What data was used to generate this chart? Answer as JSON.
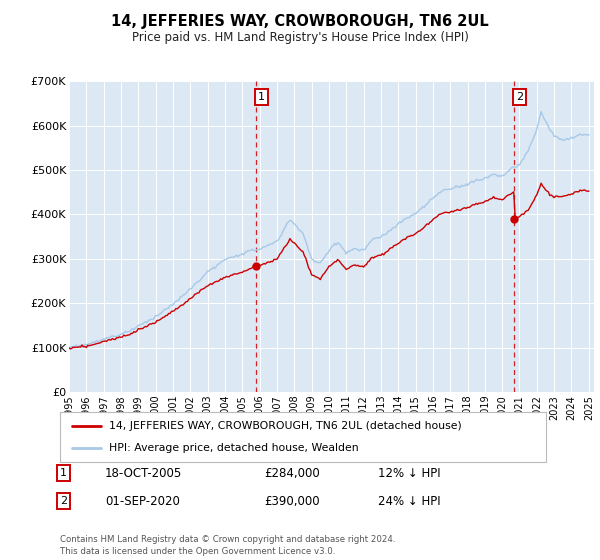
{
  "title": "14, JEFFERIES WAY, CROWBOROUGH, TN6 2UL",
  "subtitle": "Price paid vs. HM Land Registry's House Price Index (HPI)",
  "ylim": [
    0,
    700000
  ],
  "yticks": [
    0,
    100000,
    200000,
    300000,
    400000,
    500000,
    600000,
    700000
  ],
  "ytick_labels": [
    "£0",
    "£100K",
    "£200K",
    "£300K",
    "£400K",
    "£500K",
    "£600K",
    "£700K"
  ],
  "background_color": "#dce9f5",
  "hpi_color": "#a8c8e8",
  "price_color": "#cc0000",
  "sale1_x": 2005.8,
  "sale1_price": 284000,
  "sale1_date": "18-OCT-2005",
  "sale1_label": "12% ↓ HPI",
  "sale2_x": 2020.67,
  "sale2_price": 390000,
  "sale2_date": "01-SEP-2020",
  "sale2_label": "24% ↓ HPI",
  "legend_line1": "14, JEFFERIES WAY, CROWBOROUGH, TN6 2UL (detached house)",
  "legend_line2": "HPI: Average price, detached house, Wealden",
  "footer": "Contains HM Land Registry data © Crown copyright and database right 2024.\nThis data is licensed under the Open Government Licence v3.0.",
  "xstart": 1995,
  "xend": 2025,
  "hpi_keypoints": [
    [
      1995.0,
      100000
    ],
    [
      1996.0,
      107000
    ],
    [
      1997.0,
      118000
    ],
    [
      1998.0,
      130000
    ],
    [
      1999.0,
      148000
    ],
    [
      2000.0,
      168000
    ],
    [
      2001.0,
      195000
    ],
    [
      2002.0,
      230000
    ],
    [
      2003.0,
      268000
    ],
    [
      2004.0,
      295000
    ],
    [
      2005.0,
      310000
    ],
    [
      2006.0,
      320000
    ],
    [
      2007.0,
      335000
    ],
    [
      2007.75,
      385000
    ],
    [
      2008.5,
      355000
    ],
    [
      2009.0,
      295000
    ],
    [
      2009.5,
      285000
    ],
    [
      2010.0,
      315000
    ],
    [
      2010.5,
      335000
    ],
    [
      2011.0,
      310000
    ],
    [
      2011.5,
      320000
    ],
    [
      2012.0,
      315000
    ],
    [
      2012.5,
      340000
    ],
    [
      2013.0,
      345000
    ],
    [
      2013.5,
      360000
    ],
    [
      2014.0,
      375000
    ],
    [
      2014.5,
      390000
    ],
    [
      2015.0,
      400000
    ],
    [
      2015.5,
      415000
    ],
    [
      2016.0,
      435000
    ],
    [
      2016.5,
      450000
    ],
    [
      2017.0,
      455000
    ],
    [
      2017.5,
      460000
    ],
    [
      2018.0,
      465000
    ],
    [
      2018.5,
      475000
    ],
    [
      2019.0,
      480000
    ],
    [
      2019.5,
      490000
    ],
    [
      2020.0,
      485000
    ],
    [
      2020.5,
      500000
    ],
    [
      2021.0,
      510000
    ],
    [
      2021.5,
      540000
    ],
    [
      2022.0,
      590000
    ],
    [
      2022.25,
      630000
    ],
    [
      2022.5,
      610000
    ],
    [
      2022.75,
      590000
    ],
    [
      2023.0,
      575000
    ],
    [
      2023.5,
      565000
    ],
    [
      2024.0,
      570000
    ],
    [
      2024.5,
      580000
    ],
    [
      2025.0,
      578000
    ]
  ],
  "price_keypoints_pre": [
    [
      1995.0,
      98000
    ],
    [
      1996.0,
      103000
    ],
    [
      1997.0,
      113000
    ],
    [
      1998.0,
      124000
    ],
    [
      1999.0,
      140000
    ],
    [
      2000.0,
      158000
    ],
    [
      2001.0,
      182000
    ],
    [
      2002.0,
      210000
    ],
    [
      2003.0,
      240000
    ],
    [
      2004.0,
      258000
    ],
    [
      2005.0,
      270000
    ],
    [
      2005.8,
      284000
    ]
  ],
  "price_keypoints_post2": [
    [
      2020.67,
      390000
    ],
    [
      2021.0,
      395000
    ],
    [
      2021.5,
      410000
    ],
    [
      2022.0,
      445000
    ],
    [
      2022.25,
      470000
    ],
    [
      2022.5,
      455000
    ],
    [
      2022.75,
      445000
    ],
    [
      2023.0,
      440000
    ],
    [
      2023.5,
      440000
    ],
    [
      2024.0,
      445000
    ],
    [
      2024.5,
      455000
    ],
    [
      2025.0,
      452000
    ]
  ]
}
